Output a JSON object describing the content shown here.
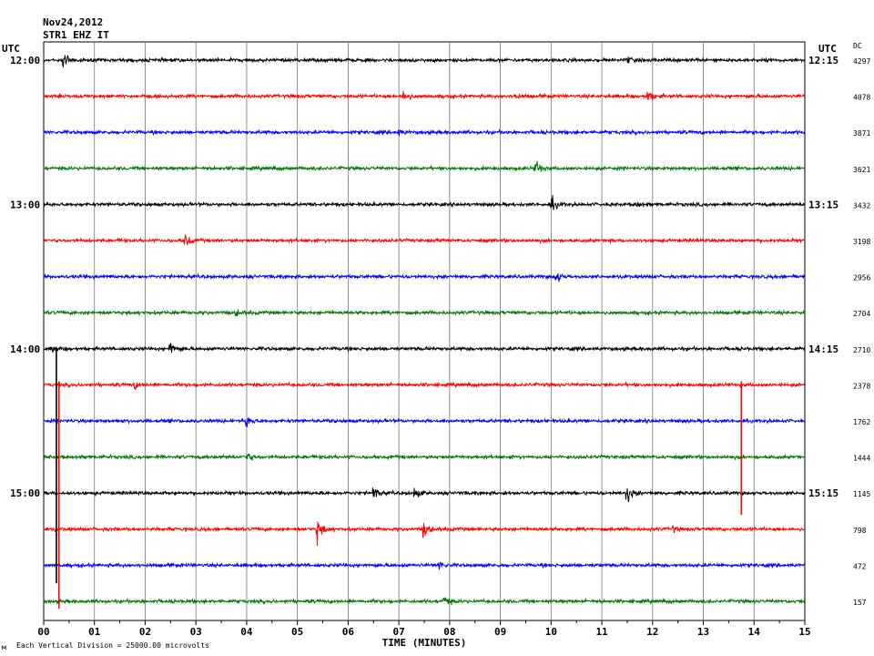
{
  "header": {
    "date": "Nov24,2012",
    "station": "STR1 EHZ IT",
    "utc_left": "UTC",
    "utc_right": "UTC",
    "dc_label": "DC"
  },
  "footer": {
    "scale_note": "Each Vertical Division = 25000.00 microvolts",
    "corner_mark": "м"
  },
  "chart_data": {
    "type": "line",
    "title": "",
    "xlabel": "TIME (MINUTES)",
    "ylabel": "",
    "xlim": [
      0,
      15
    ],
    "x_ticks": [
      "00",
      "01",
      "02",
      "03",
      "04",
      "05",
      "06",
      "07",
      "08",
      "09",
      "10",
      "11",
      "12",
      "13",
      "14",
      "15"
    ],
    "grid": true,
    "trace_colors": [
      "#000000",
      "#ff0000",
      "#0000ff",
      "#007700"
    ],
    "left_hour_labels": [
      {
        "row": 0,
        "label": "12:00"
      },
      {
        "row": 4,
        "label": "13:00"
      },
      {
        "row": 8,
        "label": "14:00"
      },
      {
        "row": 12,
        "label": "15:00"
      }
    ],
    "right_hour_labels": [
      {
        "row": 0,
        "label": "12:15"
      },
      {
        "row": 4,
        "label": "13:15"
      },
      {
        "row": 8,
        "label": "14:15"
      },
      {
        "row": 12,
        "label": "15:15"
      }
    ],
    "dc_values": [
      "4297",
      "4078",
      "3871",
      "3621",
      "3432",
      "3198",
      "2956",
      "2704",
      "2710",
      "2378",
      "1762",
      "1444",
      "1145",
      "798",
      "472",
      "157"
    ],
    "events": [
      {
        "row": 0,
        "minute": 0.4,
        "amplitude": 16
      },
      {
        "row": 0,
        "minute": 11.5,
        "amplitude": 5
      },
      {
        "row": 1,
        "minute": 7.1,
        "amplitude": 9
      },
      {
        "row": 1,
        "minute": 9.3,
        "amplitude": 5
      },
      {
        "row": 1,
        "minute": 11.9,
        "amplitude": 11
      },
      {
        "row": 2,
        "minute": 7.0,
        "amplitude": 4
      },
      {
        "row": 3,
        "minute": 9.7,
        "amplitude": 11
      },
      {
        "row": 4,
        "minute": 10.0,
        "amplitude": 12
      },
      {
        "row": 4,
        "minute": 11.7,
        "amplitude": 4
      },
      {
        "row": 5,
        "minute": 2.8,
        "amplitude": 10
      },
      {
        "row": 6,
        "minute": 10.1,
        "amplitude": 10
      },
      {
        "row": 7,
        "minute": 3.8,
        "amplitude": 4
      },
      {
        "row": 8,
        "minute": 2.5,
        "amplitude": 10
      },
      {
        "row": 8,
        "minute": 0.2,
        "amplitude": 5
      },
      {
        "row": 9,
        "minute": 1.8,
        "amplitude": 5
      },
      {
        "row": 10,
        "minute": 4.0,
        "amplitude": 10
      },
      {
        "row": 11,
        "minute": 4.0,
        "amplitude": 9
      },
      {
        "row": 12,
        "minute": 6.5,
        "amplitude": 11
      },
      {
        "row": 12,
        "minute": 7.3,
        "amplitude": 10
      },
      {
        "row": 12,
        "minute": 11.5,
        "amplitude": 14
      },
      {
        "row": 13,
        "minute": 5.4,
        "amplitude": 18
      },
      {
        "row": 13,
        "minute": 7.5,
        "amplitude": 12
      },
      {
        "row": 13,
        "minute": 12.4,
        "amplitude": 4
      },
      {
        "row": 14,
        "minute": 7.8,
        "amplitude": 6
      },
      {
        "row": 15,
        "minute": 7.9,
        "amplitude": 8
      }
    ],
    "spikes": [
      {
        "minute": 0.25,
        "from_row": 8,
        "to_row": 14.5,
        "color": "#000000"
      },
      {
        "minute": 0.3,
        "from_row": 8.9,
        "to_row": 15.2,
        "color": "#ff0000"
      },
      {
        "minute": 13.75,
        "from_row": 8.9,
        "to_row": 12.6,
        "color": "#ff0000"
      }
    ]
  }
}
